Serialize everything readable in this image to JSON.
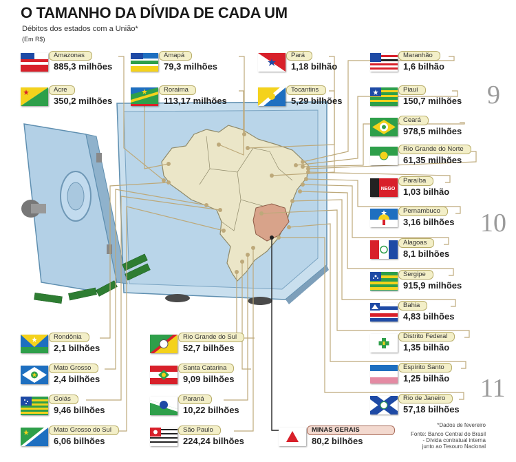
{
  "title": "O TAMANHO DA DÍVIDA DE CADA UM",
  "subtitle": "Débitos dos estados com a União*",
  "unit": "(Em R$)",
  "page_numbers": [
    "9",
    "10",
    "11"
  ],
  "states": [
    {
      "key": "amazonas",
      "name": "Amazonas",
      "value": "885,3 milhões"
    },
    {
      "key": "amapa",
      "name": "Amapá",
      "value": "79,3 milhões"
    },
    {
      "key": "para",
      "name": "Pará",
      "value": "1,18 bilhão"
    },
    {
      "key": "maranhao",
      "name": "Maranhão",
      "value": "1,6 bilhão"
    },
    {
      "key": "acre",
      "name": "Acre",
      "value": "350,2 milhões"
    },
    {
      "key": "roraima",
      "name": "Roraima",
      "value": "113,17 milhões"
    },
    {
      "key": "tocantins",
      "name": "Tocantins",
      "value": "5,29 bilhões"
    },
    {
      "key": "piaui",
      "name": "Piauí",
      "value": "150,7 milhões"
    },
    {
      "key": "ceara",
      "name": "Ceará",
      "value": "978,5 milhões"
    },
    {
      "key": "rn",
      "name": "Rio Grande do Norte",
      "value": "61,35 milhões"
    },
    {
      "key": "paraiba",
      "name": "Paraíba",
      "value": "1,03 bilhão",
      "flag_text": "NEGO"
    },
    {
      "key": "pernambuco",
      "name": "Pernambuco",
      "value": "3,16 bilhões"
    },
    {
      "key": "alagoas",
      "name": "Alagoas",
      "value": "8,1 bilhões"
    },
    {
      "key": "sergipe",
      "name": "Sergipe",
      "value": "915,9 milhões"
    },
    {
      "key": "bahia",
      "name": "Bahia",
      "value": "4,83 bilhões"
    },
    {
      "key": "df",
      "name": "Distrito Federal",
      "value": "1,35 bilhão"
    },
    {
      "key": "es",
      "name": "Espírito Santo",
      "value": "1,25 bilhão"
    },
    {
      "key": "rj",
      "name": "Rio de Janeiro",
      "value": "57,18 bilhões"
    },
    {
      "key": "rondonia",
      "name": "Rondônia",
      "value": "2,1 bilhões"
    },
    {
      "key": "mt",
      "name": "Mato Grosso",
      "value": "2,4 bilhões"
    },
    {
      "key": "goias",
      "name": "Goiás",
      "value": "9,46 bilhões"
    },
    {
      "key": "ms",
      "name": "Mato Grosso do Sul",
      "value": "6,06 bilhões"
    },
    {
      "key": "rs",
      "name": "Rio Grande do Sul",
      "value": "52,7 bilhões"
    },
    {
      "key": "sc",
      "name": "Santa Catarina",
      "value": "9,09 bilhões"
    },
    {
      "key": "parana",
      "name": "Paraná",
      "value": "10,22 bilhões"
    },
    {
      "key": "sp",
      "name": "São Paulo",
      "value": "224,24 bilhões"
    },
    {
      "key": "mg",
      "name": "MINAS GERAIS",
      "value": "80,2 bilhões"
    }
  ],
  "footnote": [
    "*Dados de fevereiro",
    "Fonte: Banco Central do Brasil",
    "- Dívida contratual interna",
    "junto ao Tesouro Nacional"
  ]
}
